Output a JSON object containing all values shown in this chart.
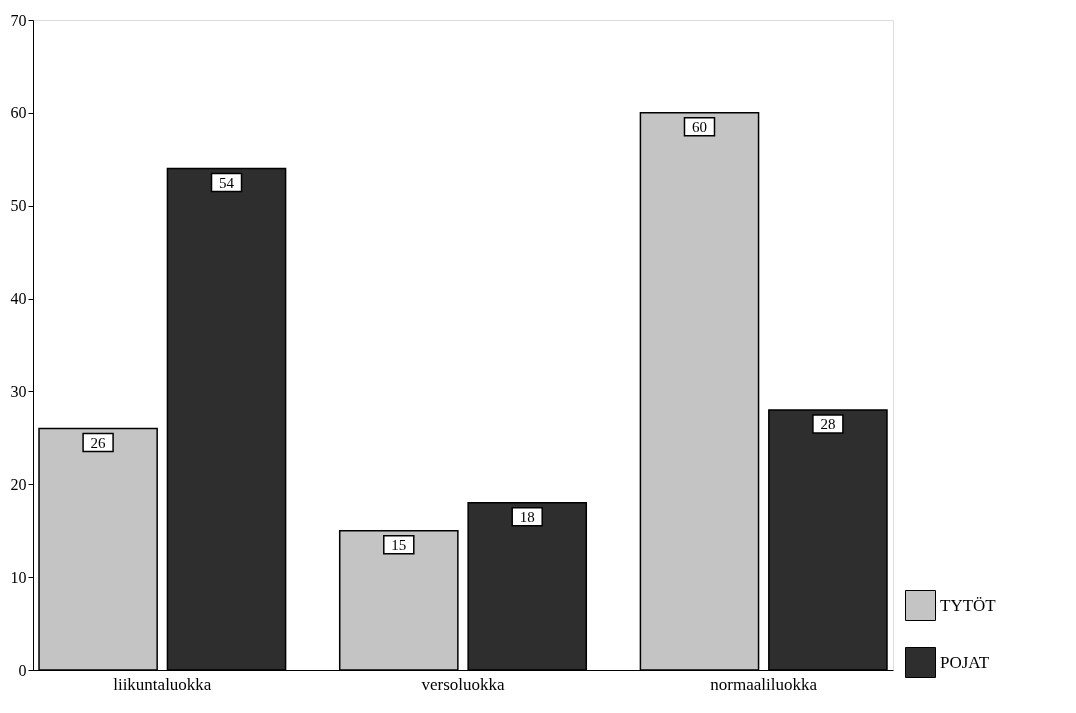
{
  "chart_data": {
    "type": "bar",
    "categories": [
      "liikuntaluokka",
      "versoluokka",
      "normaaliluokka"
    ],
    "series": [
      {
        "name": "TYTÖT",
        "color": "#c4c4c4",
        "values": [
          26,
          15,
          60
        ]
      },
      {
        "name": "POJAT",
        "color": "#2e2e2e",
        "values": [
          54,
          18,
          28
        ]
      }
    ],
    "ylim": [
      0,
      70
    ],
    "yticks": [
      0,
      10,
      20,
      30,
      40,
      50,
      60,
      70
    ],
    "grid": false,
    "legend": "bottom right",
    "data_labels": true
  }
}
